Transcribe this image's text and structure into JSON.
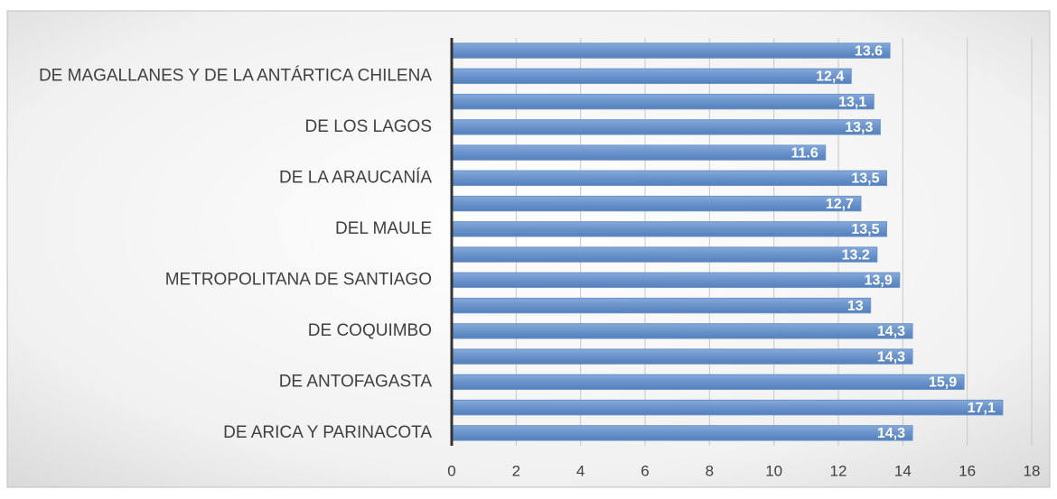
{
  "chart_data": {
    "type": "bar",
    "orientation": "horizontal",
    "categories": [
      "DE ARICA Y PARINACOTA",
      null,
      "DE ANTOFAGASTA",
      null,
      "DE COQUIMBO",
      null,
      "METROPOLITANA DE SANTIAGO",
      null,
      "DEL MAULE",
      null,
      "DE LA ARAUCANÍA",
      null,
      "DE LOS LAGOS",
      null,
      "DE MAGALLANES Y DE LA ANTÁRTICA CHILENA",
      null
    ],
    "values": [
      14.3,
      17.1,
      15.9,
      14.3,
      14.3,
      13,
      13.9,
      13.2,
      13.5,
      12.7,
      13.5,
      11.6,
      13.3,
      13.1,
      12.4,
      13.6
    ],
    "value_labels": [
      "14,3",
      "17,1",
      "15,9",
      "14,3",
      "14,3",
      "13",
      "13,9",
      "13.2",
      "13,5",
      "12,7",
      "13,5",
      "11.6",
      "13,3",
      "13,1",
      "12,4",
      "13.6"
    ],
    "color": "#6a93cb",
    "xlim": [
      0,
      18
    ],
    "xticks": [
      0,
      2,
      4,
      6,
      8,
      10,
      12,
      14,
      16,
      18
    ],
    "grid": true
  }
}
